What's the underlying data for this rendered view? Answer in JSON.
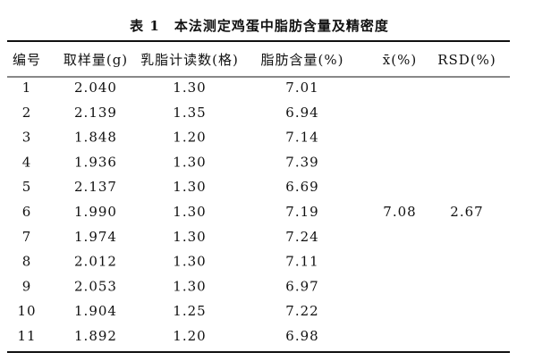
{
  "table": {
    "title": "表 1　本法测定鸡蛋中脂肪含量及精密度",
    "headers": [
      "编号",
      "取样量(g)",
      "乳脂计读数(格)",
      "脂肪含量(%)",
      "x̄(%)",
      "RSD(%)"
    ],
    "rows": [
      [
        "1",
        "2.040",
        "1.30",
        "7.01"
      ],
      [
        "2",
        "2.139",
        "1.35",
        "6.94"
      ],
      [
        "3",
        "1.848",
        "1.20",
        "7.14"
      ],
      [
        "4",
        "1.936",
        "1.30",
        "7.39"
      ],
      [
        "5",
        "2.137",
        "1.30",
        "6.69"
      ],
      [
        "6",
        "1.990",
        "1.30",
        "7.19"
      ],
      [
        "7",
        "1.974",
        "1.30",
        "7.24"
      ],
      [
        "8",
        "2.012",
        "1.30",
        "7.11"
      ],
      [
        "9",
        "2.053",
        "1.30",
        "6.97"
      ],
      [
        "10",
        "1.904",
        "1.25",
        "7.22"
      ],
      [
        "11",
        "1.892",
        "1.20",
        "6.98"
      ]
    ],
    "summary": [
      "7.08",
      "2.67"
    ]
  }
}
